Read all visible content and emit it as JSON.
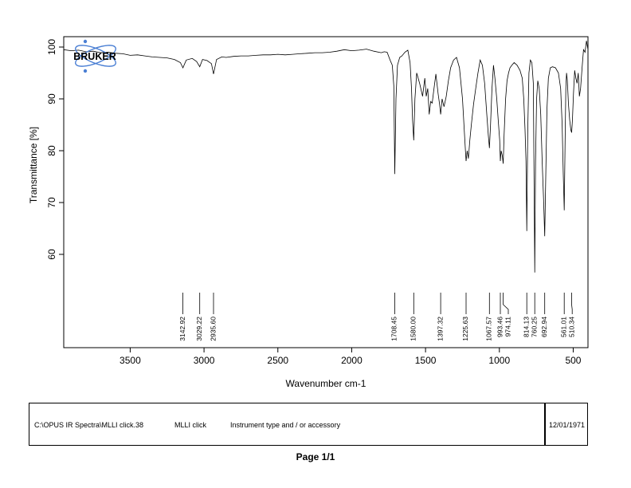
{
  "chart_data": {
    "type": "line",
    "xlabel": "Wavenumber cm-1",
    "ylabel": "Transmittance [%]",
    "xlim": [
      3950,
      400
    ],
    "ylim": [
      42,
      102
    ],
    "x_ticks": [
      3500,
      3000,
      2500,
      2000,
      1500,
      1000,
      500
    ],
    "y_ticks": [
      60,
      70,
      80,
      90,
      100
    ],
    "grid": false,
    "series": [
      {
        "line_color": "#000000",
        "x": [
          3950,
          3900,
          3850,
          3800,
          3750,
          3700,
          3650,
          3600,
          3550,
          3500,
          3450,
          3400,
          3350,
          3300,
          3250,
          3200,
          3160,
          3142.92,
          3120,
          3080,
          3050,
          3029.22,
          3010,
          2980,
          2950,
          2935.6,
          2915,
          2880,
          2850,
          2800,
          2750,
          2700,
          2650,
          2600,
          2550,
          2500,
          2450,
          2400,
          2350,
          2300,
          2250,
          2200,
          2150,
          2100,
          2050,
          2000,
          1950,
          1900,
          1850,
          1800,
          1780,
          1760,
          1740,
          1725,
          1715,
          1708.45,
          1700,
          1690,
          1675,
          1660,
          1640,
          1620,
          1605,
          1595,
          1588,
          1580,
          1572,
          1560,
          1540,
          1520,
          1505,
          1495,
          1485,
          1475,
          1465,
          1455,
          1445,
          1430,
          1415,
          1405,
          1397.32,
          1388,
          1375,
          1360,
          1345,
          1330,
          1310,
          1290,
          1270,
          1250,
          1238,
          1230,
          1225.63,
          1218,
          1210,
          1200,
          1190,
          1175,
          1160,
          1145,
          1130,
          1115,
          1100,
          1085,
          1075,
          1067.57,
          1060,
          1050,
          1040,
          1030,
          1018,
          1008,
          998,
          993.46,
          988,
          980,
          974.11,
          968,
          958,
          948,
          938,
          928,
          915,
          900,
          880,
          860,
          845,
          835,
          826,
          820,
          814.13,
          808,
          800,
          790,
          780,
          770,
          765,
          760.25,
          755,
          748,
          740,
          730,
          720,
          710,
          700,
          692.94,
          686,
          678,
          668,
          655,
          640,
          620,
          600,
          585,
          575,
          568,
          561.01,
          555,
          550,
          545,
          540,
          532,
          524,
          516,
          510.34,
          505,
          498,
          490,
          482,
          474,
          466,
          458,
          450,
          440,
          430,
          420,
          410,
          400
        ],
        "y": [
          99.5,
          99.3,
          99.4,
          99.1,
          99.2,
          98.9,
          99.0,
          98.8,
          98.7,
          98.4,
          98.5,
          98.3,
          98.1,
          98.0,
          97.9,
          97.6,
          97.0,
          96.0,
          97.5,
          97.8,
          97.2,
          96.2,
          97.6,
          97.4,
          96.8,
          94.8,
          97.6,
          98.1,
          98.0,
          98.2,
          98.3,
          98.3,
          98.4,
          98.5,
          98.5,
          98.6,
          98.5,
          98.6,
          98.7,
          98.8,
          98.9,
          98.9,
          99.0,
          99.2,
          99.5,
          99.3,
          99.4,
          99.6,
          99.2,
          98.9,
          99.1,
          99.0,
          97.5,
          96.5,
          92.5,
          75.5,
          90.0,
          96.5,
          98.0,
          98.3,
          99.0,
          99.4,
          97.0,
          92.0,
          86.0,
          82.0,
          90.0,
          95.0,
          93.0,
          90.5,
          94.0,
          90.5,
          92.0,
          87.0,
          89.5,
          89.2,
          91.5,
          94.8,
          91.0,
          89.0,
          87.0,
          90.0,
          88.5,
          90.5,
          93.5,
          96.0,
          97.5,
          98.0,
          96.0,
          90.0,
          84.0,
          80.0,
          78.0,
          80.0,
          78.5,
          82.0,
          85.0,
          89.0,
          92.0,
          95.0,
          97.5,
          96.5,
          93.0,
          87.0,
          83.0,
          80.5,
          85.0,
          92.0,
          96.5,
          94.0,
          90.0,
          86.0,
          82.0,
          78.0,
          80.0,
          79.0,
          77.5,
          83.0,
          90.0,
          93.5,
          95.0,
          96.0,
          96.5,
          97.0,
          96.5,
          95.5,
          94.0,
          90.0,
          84.0,
          78.0,
          64.5,
          84.0,
          95.0,
          97.5,
          97.0,
          93.0,
          75.0,
          56.5,
          78.0,
          90.0,
          93.5,
          92.0,
          87.0,
          78.0,
          70.0,
          63.5,
          75.0,
          88.0,
          94.0,
          96.0,
          96.2,
          96.0,
          95.0,
          92.0,
          85.0,
          76.0,
          68.5,
          82.0,
          92.0,
          95.0,
          93.5,
          89.0,
          86.0,
          84.0,
          83.5,
          86.0,
          91.0,
          95.5,
          94.0,
          93.0,
          95.0,
          90.5,
          92.0,
          96.0,
          99.5,
          99.0,
          101.2,
          99.5
        ]
      }
    ],
    "peak_labels": [
      "3142.92",
      "3029.22",
      "2935.60",
      "1708.45",
      "1580.00",
      "1397.32",
      "1225.63",
      "1067.57",
      "993.46",
      "974.11",
      "814.13",
      "760.25",
      "692.94",
      "561.01",
      "510.34"
    ]
  },
  "logo": {
    "text": "BRUKER",
    "accent_color": "#4a7fd4"
  },
  "footer": {
    "file_path": "C:\\OPUS IR Spectra\\MLLI click.38",
    "sample_name": "MLLI click",
    "instrument": "Instrument type and / or accessory",
    "date": "12/01/1971"
  },
  "page_label": "Page 1/1"
}
